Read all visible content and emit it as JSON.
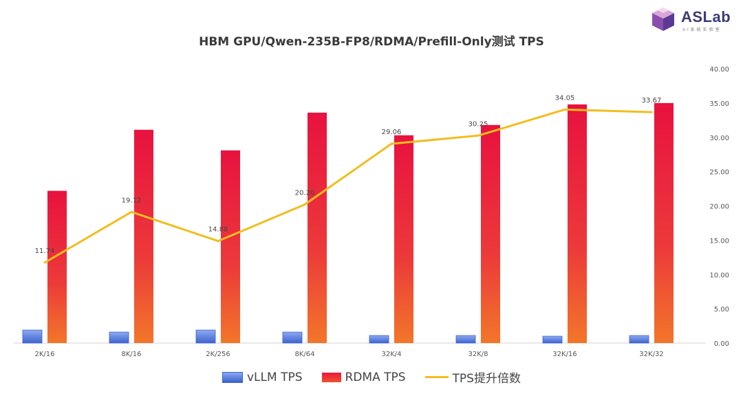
{
  "logo": {
    "text": "ASLab",
    "subtext": "AI系统实验室"
  },
  "chart_data": {
    "type": "bar",
    "title": "HBM GPU/Qwen-235B-FP8/RDMA/Prefill-Only测试 TPS",
    "categories": [
      "2K/16",
      "8K/16",
      "2K/256",
      "8K/64",
      "32K/4",
      "32K/8",
      "32K/16",
      "32K/32"
    ],
    "series": [
      {
        "name": "vLLM TPS",
        "type": "bar",
        "axis": "right",
        "values": [
          1.9,
          1.6,
          1.9,
          1.6,
          1.1,
          1.1,
          1.0,
          1.1
        ],
        "color": "#4a6fd6"
      },
      {
        "name": "RDMA TPS",
        "type": "bar",
        "axis": "right",
        "values": [
          22.2,
          31.1,
          28.1,
          33.6,
          30.3,
          31.8,
          34.8,
          35.0
        ],
        "color": "#e8173f"
      },
      {
        "name": "TPS提升倍数",
        "type": "line",
        "axis": "right",
        "values": [
          11.74,
          19.12,
          14.88,
          20.2,
          29.06,
          30.25,
          34.05,
          33.67
        ],
        "labels": [
          "11.74",
          "19.12",
          "14.88",
          "20.20",
          "29.06",
          "30.25",
          "34.05",
          "33.67"
        ],
        "color": "#f2bd1d"
      }
    ],
    "y_right_ticks": [
      "0.00",
      "5.00",
      "10.00",
      "15.00",
      "20.00",
      "25.00",
      "30.00",
      "35.00",
      "40.00"
    ],
    "ylim": [
      0,
      40
    ],
    "grid": false,
    "legend_position": "bottom"
  }
}
